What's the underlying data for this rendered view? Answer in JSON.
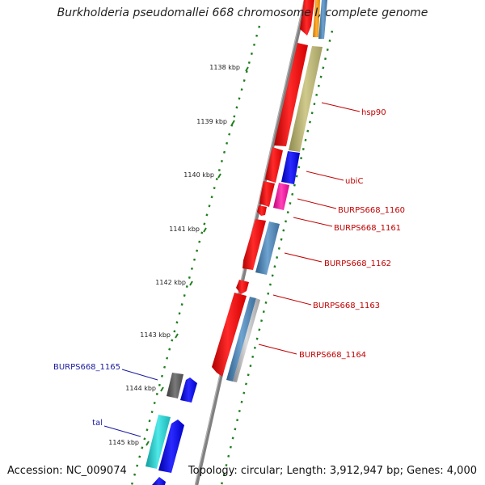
{
  "title": "Burkholderia pseudomallei 668 chromosome I, complete genome",
  "footer": {
    "accession": "Accession: NC_009074",
    "summary": "Topology: circular; Length: 3,912,947 bp; Genes: 4,000"
  },
  "kbp_ticks": [
    "1138 kbp",
    "1139 kbp",
    "1140 kbp",
    "1141 kbp",
    "1142 kbp",
    "1143 kbp",
    "1144 kbp",
    "1145 kbp"
  ],
  "gene_labels_forward": [
    "hsp90",
    "ubiC",
    "BURPS668_1160",
    "BURPS668_1161",
    "BURPS668_1162",
    "BURPS668_1163",
    "BURPS668_1164"
  ],
  "gene_labels_reverse": [
    "BURPS668_1165",
    "tal"
  ],
  "colors": {
    "cds": "#ff0000",
    "backbone": "#808080",
    "tick_green": "#1f7f1f",
    "label_red": "#c00000",
    "label_blue": "#1a1aa0",
    "blue_gene": "#0000ee",
    "steel_blue": "#4682b4",
    "olive": "#bdb76b",
    "magenta": "#ff1aa0",
    "cyan": "#1ccccc",
    "gray_block": "#555555",
    "orange": "#ff9900"
  }
}
